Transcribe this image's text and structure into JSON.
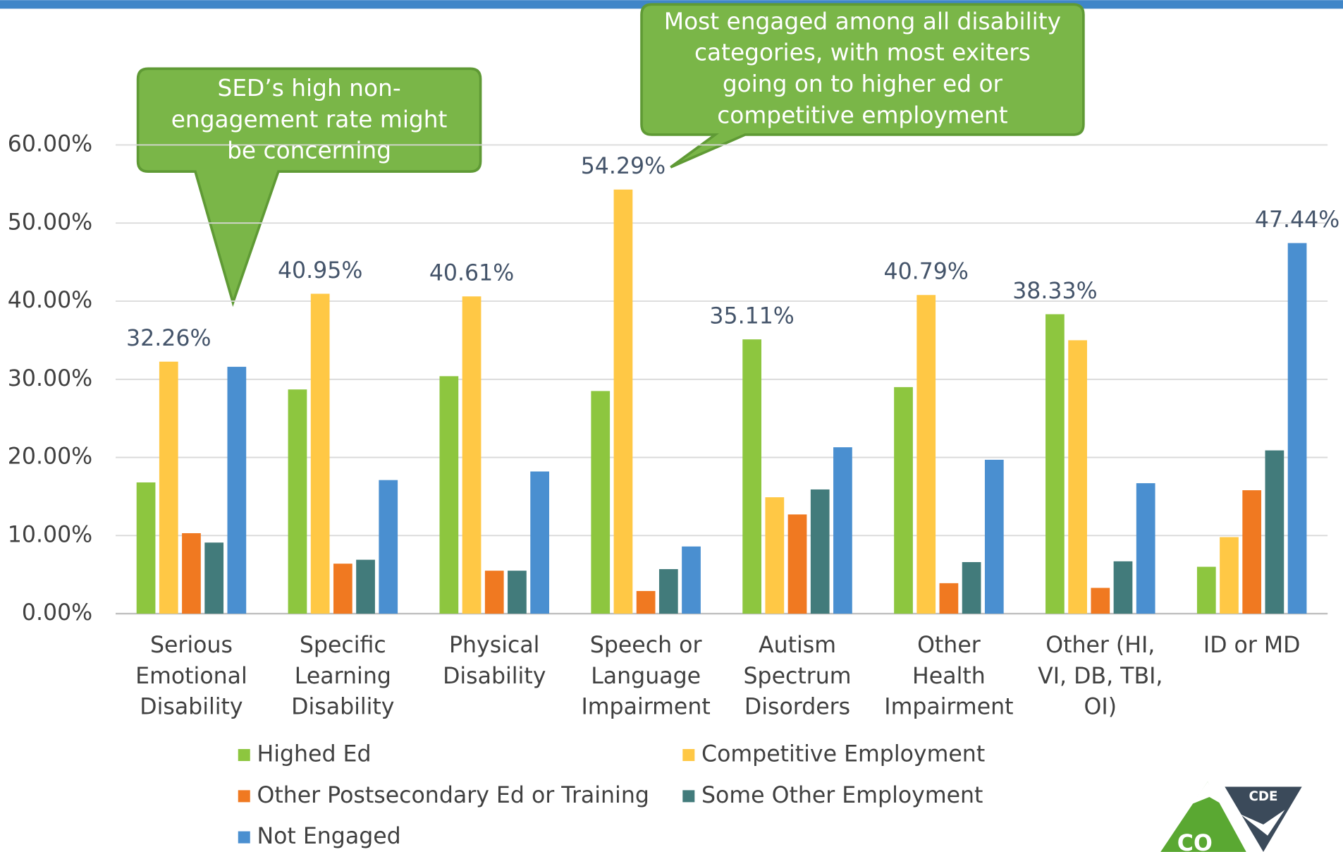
{
  "chart_data": {
    "type": "bar",
    "categories": [
      [
        "Serious",
        "Emotional",
        "Disability"
      ],
      [
        "Specific",
        "Learning",
        "Disability"
      ],
      [
        "Physical",
        "Disability"
      ],
      [
        "Speech or",
        "Language",
        "Impairment"
      ],
      [
        "Autism",
        "Spectrum",
        "Disorders"
      ],
      [
        "Other",
        "Health",
        "Impairment"
      ],
      [
        "Other (HI,",
        "VI, DB, TBI,",
        "OI)"
      ],
      [
        "ID or MD"
      ]
    ],
    "series": [
      {
        "name": "Highed Ed",
        "color": "#8dc63f",
        "values": [
          16.8,
          28.7,
          30.4,
          28.5,
          35.11,
          29.0,
          38.33,
          6.0
        ],
        "value_labels": [
          null,
          null,
          null,
          null,
          "35.11%",
          null,
          "38.33%",
          null
        ]
      },
      {
        "name": "Competitive Employment",
        "color": "#ffc845",
        "values": [
          32.26,
          40.95,
          40.61,
          54.29,
          14.9,
          40.79,
          35.0,
          9.8
        ],
        "value_labels": [
          "32.26%",
          "40.95%",
          "40.61%",
          "54.29%",
          null,
          "40.79%",
          null,
          null
        ]
      },
      {
        "name": "Other Postsecondary Ed or Training",
        "color": "#f07921",
        "values": [
          10.3,
          6.4,
          5.5,
          2.9,
          12.7,
          3.9,
          3.3,
          15.8
        ],
        "value_labels": [
          null,
          null,
          null,
          null,
          null,
          null,
          null,
          null
        ]
      },
      {
        "name": "Some Other Employment",
        "color": "#427b7b",
        "values": [
          9.1,
          6.9,
          5.5,
          5.7,
          15.9,
          6.6,
          6.7,
          20.9
        ],
        "value_labels": [
          null,
          null,
          null,
          null,
          null,
          null,
          null,
          null
        ]
      },
      {
        "name": "Not Engaged",
        "color": "#4a8fd0",
        "values": [
          31.6,
          17.1,
          18.2,
          8.6,
          21.3,
          19.7,
          16.7,
          47.44
        ],
        "value_labels": [
          null,
          null,
          null,
          null,
          null,
          null,
          null,
          "47.44%"
        ]
      }
    ],
    "ylim": [
      0,
      60
    ],
    "yticks": [
      {
        "value": 0,
        "label": "0.00%"
      },
      {
        "value": 10,
        "label": "10.00%"
      },
      {
        "value": 20,
        "label": "20.00%"
      },
      {
        "value": 30,
        "label": "30.00%"
      },
      {
        "value": 40,
        "label": "40.00%"
      },
      {
        "value": 50,
        "label": "50.00%"
      },
      {
        "value": 60,
        "label": "60.00%"
      }
    ],
    "grid": true,
    "annotations": [
      {
        "lines": [
          "SED’s high non-",
          "engagement rate might",
          "be concerning"
        ]
      },
      {
        "lines": [
          "Most engaged among all disability",
          "categories, with most exiters",
          "going on to higher ed or",
          "competitive employment"
        ]
      }
    ]
  },
  "logo": {
    "badge": "CDE",
    "mark": "CO"
  }
}
